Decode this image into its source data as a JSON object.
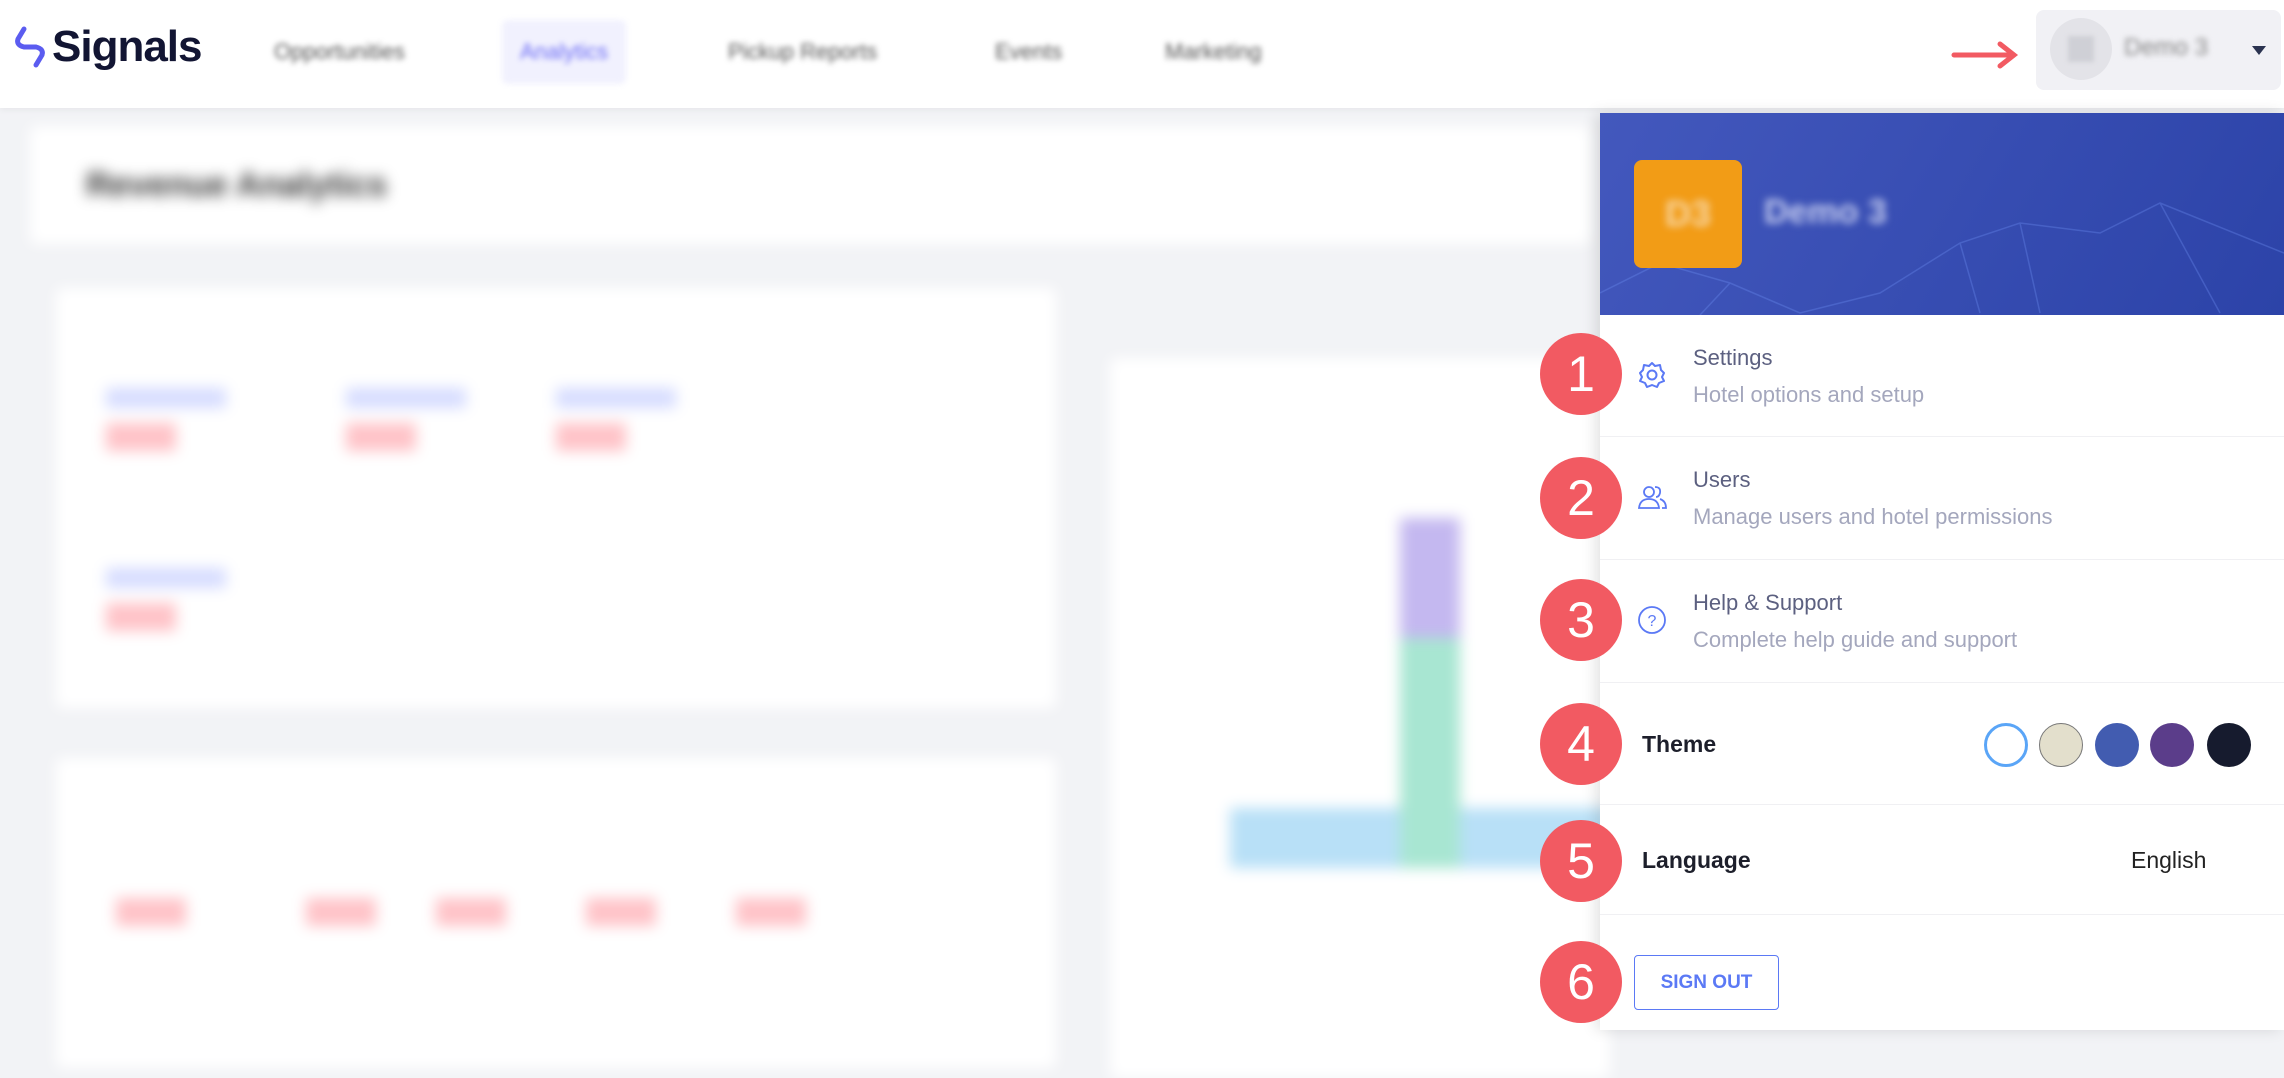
{
  "app": {
    "logo": "Signals"
  },
  "nav": [
    {
      "label": "Opportunities",
      "active": false
    },
    {
      "label": "Analytics",
      "active": true
    },
    {
      "label": "Pickup Reports",
      "active": false
    },
    {
      "label": "Events",
      "active": false
    },
    {
      "label": "Marketing",
      "active": false
    }
  ],
  "user": {
    "name": "Demo 3",
    "initials": "D3"
  },
  "page": {
    "title": "Revenue Analytics"
  },
  "menu": {
    "items": [
      {
        "title": "Settings",
        "subtitle": "Hotel options and setup",
        "icon": "gear-icon"
      },
      {
        "title": "Users",
        "subtitle": "Manage users and hotel permissions",
        "icon": "users-icon"
      },
      {
        "title": "Help & Support",
        "subtitle": "Complete help guide and support",
        "icon": "question-circle-icon"
      }
    ],
    "theme_label": "Theme",
    "theme_colors": [
      "#ffffff",
      "#e3dfcc",
      "#425cb0",
      "#5b3d8a",
      "#161b2e"
    ],
    "language_label": "Language",
    "language_value": "English",
    "sign_out": "SIGN OUT"
  },
  "annotations": [
    "1",
    "2",
    "3",
    "4",
    "5",
    "6"
  ],
  "colors": {
    "accent": "#5b79f5",
    "badge": "#f25a62",
    "banner": "#3a50b5",
    "avatar": "#f29c16"
  }
}
